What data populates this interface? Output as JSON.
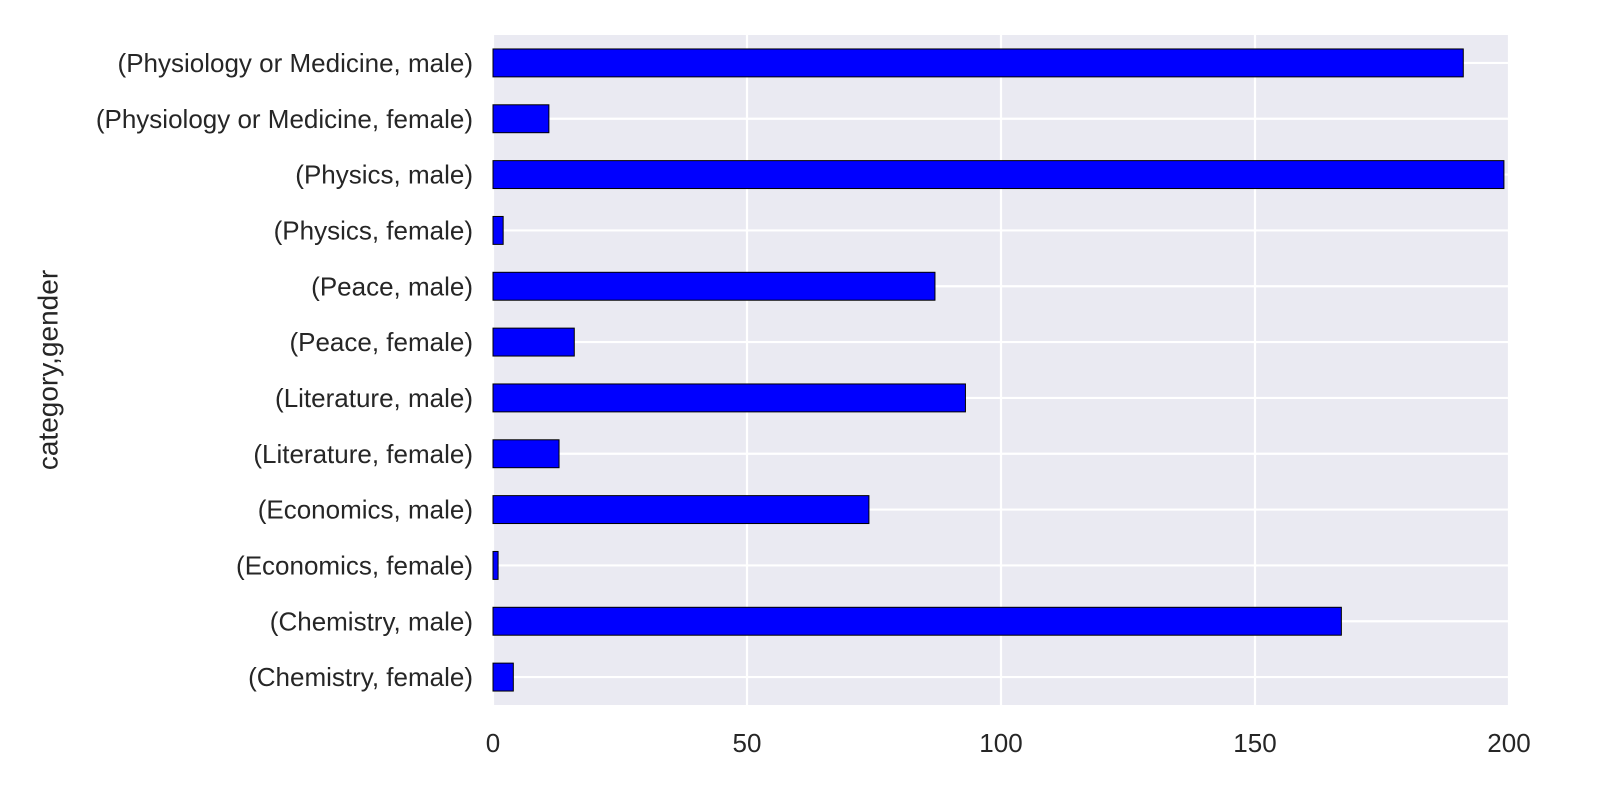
{
  "chart_data": {
    "type": "bar",
    "orientation": "horizontal",
    "categories": [
      "(Chemistry, female)",
      "(Chemistry, male)",
      "(Economics, female)",
      "(Economics, male)",
      "(Literature, female)",
      "(Literature, male)",
      "(Peace, female)",
      "(Peace, male)",
      "(Physics, female)",
      "(Physics, male)",
      "(Physiology or Medicine, female)",
      "(Physiology or Medicine, male)"
    ],
    "values": [
      4,
      167,
      1,
      74,
      13,
      93,
      16,
      87,
      2,
      199,
      11,
      191
    ],
    "title": "",
    "xlabel": "",
    "ylabel": "category,gender",
    "xlim": [
      0,
      200
    ],
    "xticks": [
      0,
      50,
      100,
      150,
      200
    ],
    "grid": true,
    "legend": "none",
    "colors": {
      "bar": "#0000ff",
      "bar_edge": "#000000",
      "plot_background": "#eaeaf2",
      "grid": "#ffffff",
      "text": "#262626"
    }
  }
}
